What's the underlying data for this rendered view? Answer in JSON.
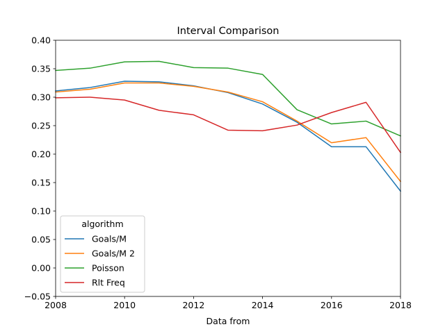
{
  "chart_data": {
    "type": "line",
    "title": "Interval Comparison",
    "xlabel": "Data from",
    "ylabel": "",
    "xlim": [
      2008,
      2018
    ],
    "ylim": [
      -0.05,
      0.4
    ],
    "x_ticks": [
      2008,
      2010,
      2012,
      2014,
      2016,
      2018
    ],
    "x_tick_labels": [
      "2008",
      "2010",
      "2012",
      "2014",
      "2016",
      "2018"
    ],
    "y_ticks": [
      -0.05,
      0.0,
      0.05,
      0.1,
      0.15,
      0.2,
      0.25,
      0.3,
      0.35,
      0.4
    ],
    "y_tick_labels": [
      "−0.05",
      "0.00",
      "0.05",
      "0.10",
      "0.15",
      "0.20",
      "0.25",
      "0.30",
      "0.35",
      "0.40"
    ],
    "grid": false,
    "legend": {
      "title": "algorithm",
      "placement": "lower-left"
    },
    "x": [
      2008,
      2009,
      2010,
      2011,
      2012,
      2013,
      2014,
      2015,
      2016,
      2017,
      2018
    ],
    "series": [
      {
        "name": "Goals/M",
        "color": "#1f77b4",
        "values": [
          0.311,
          0.317,
          0.328,
          0.327,
          0.32,
          0.308,
          0.288,
          0.256,
          0.213,
          0.213,
          0.135
        ]
      },
      {
        "name": "Goals/M 2",
        "color": "#ff7f0e",
        "values": [
          0.309,
          0.314,
          0.325,
          0.325,
          0.319,
          0.309,
          0.292,
          0.258,
          0.22,
          0.229,
          0.152
        ]
      },
      {
        "name": "Poisson",
        "color": "#2ca02c",
        "values": [
          0.347,
          0.351,
          0.362,
          0.363,
          0.352,
          0.351,
          0.34,
          0.278,
          0.253,
          0.258,
          0.232
        ]
      },
      {
        "name": "Rlt Freq",
        "color": "#d62728",
        "values": [
          0.299,
          0.3,
          0.295,
          0.277,
          0.269,
          0.242,
          0.241,
          0.251,
          0.273,
          0.291,
          0.203
        ]
      }
    ]
  }
}
